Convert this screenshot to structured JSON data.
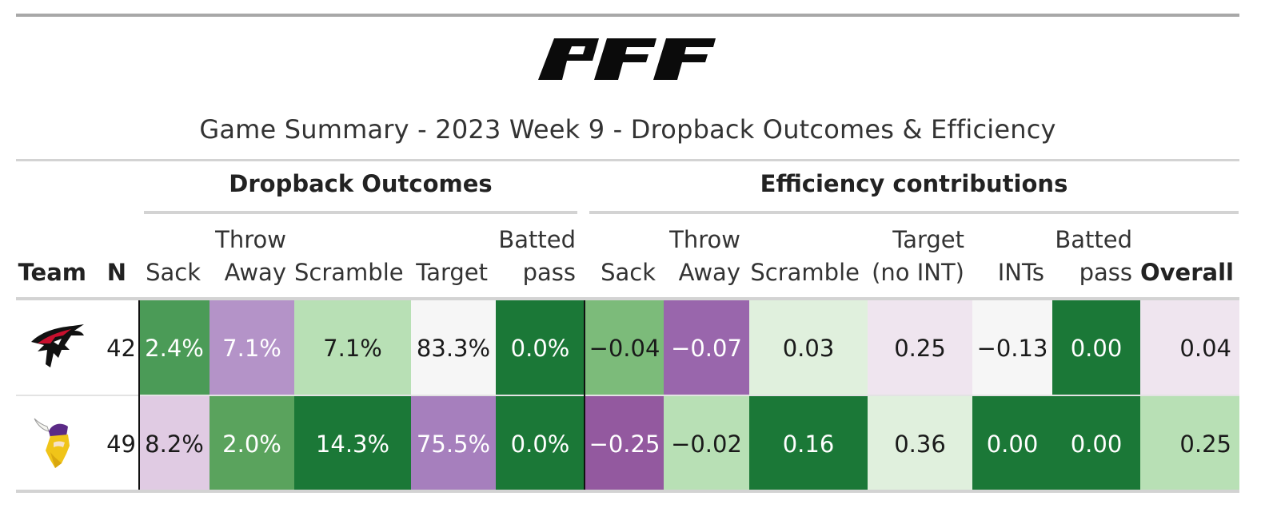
{
  "logo_text": "PFF",
  "title": "Game Summary - 2023 Week 9 - Dropback Outcomes & Efficiency",
  "spanners": {
    "dropback_outcomes": "Dropback Outcomes",
    "efficiency_contributions": "Efficiency contributions"
  },
  "columns": {
    "team": "Team",
    "n": "N",
    "outcomes": {
      "sack": [
        "",
        "Sack"
      ],
      "throw_away": [
        "Throw",
        "Away"
      ],
      "scramble": [
        "",
        "Scramble"
      ],
      "target": [
        "",
        "Target"
      ],
      "batted_pass": [
        "Batted",
        "pass"
      ]
    },
    "efficiency": {
      "sack": [
        "",
        "Sack"
      ],
      "throw_away": [
        "Throw",
        "Away"
      ],
      "scramble": [
        "",
        "Scramble"
      ],
      "target_no_int": [
        "Target",
        "(no INT)"
      ],
      "ints": [
        "",
        "INTs"
      ],
      "batted_pass": [
        "Batted",
        "pass"
      ],
      "overall": [
        "",
        "Overall"
      ]
    }
  },
  "rows": [
    {
      "team_icon": "falcons-logo-icon",
      "n": "42",
      "outcomes": {
        "sack": {
          "text": "2.4%",
          "bg": "#4b9b57",
          "fg": "#ffffff"
        },
        "throw_away": {
          "text": "7.1%",
          "bg": "#b493c8",
          "fg": "#ffffff"
        },
        "scramble": {
          "text": "7.1%",
          "bg": "#b8e0b5",
          "fg": "#1a1a1a"
        },
        "target": {
          "text": "83.3%",
          "bg": "#f6f6f6",
          "fg": "#1a1a1a"
        },
        "batted_pass": {
          "text": "0.0%",
          "bg": "#1b7837",
          "fg": "#ffffff"
        }
      },
      "efficiency": {
        "sack": {
          "text": "−0.04",
          "bg": "#7cbb7a",
          "fg": "#1a1a1a"
        },
        "throw_away": {
          "text": "−0.07",
          "bg": "#9966ac",
          "fg": "#ffffff"
        },
        "scramble": {
          "text": "0.03",
          "bg": "#e0f0dd",
          "fg": "#1a1a1a"
        },
        "target_no_int": {
          "text": "0.25",
          "bg": "#efe5ef",
          "fg": "#1a1a1a"
        },
        "ints": {
          "text": "−0.13",
          "bg": "#f6f6f6",
          "fg": "#1a1a1a"
        },
        "batted_pass": {
          "text": "0.00",
          "bg": "#1b7837",
          "fg": "#ffffff"
        },
        "overall": {
          "text": "0.04",
          "bg": "#efe5ef",
          "fg": "#1a1a1a"
        }
      }
    },
    {
      "team_icon": "vikings-logo-icon",
      "n": "49",
      "outcomes": {
        "sack": {
          "text": "8.2%",
          "bg": "#e0cbe3",
          "fg": "#1a1a1a"
        },
        "throw_away": {
          "text": "2.0%",
          "bg": "#5aa35d",
          "fg": "#ffffff"
        },
        "scramble": {
          "text": "14.3%",
          "bg": "#1b7837",
          "fg": "#ffffff"
        },
        "target": {
          "text": "75.5%",
          "bg": "#a67fbd",
          "fg": "#ffffff"
        },
        "batted_pass": {
          "text": "0.0%",
          "bg": "#1b7837",
          "fg": "#ffffff"
        }
      },
      "efficiency": {
        "sack": {
          "text": "−0.25",
          "bg": "#93599f",
          "fg": "#ffffff"
        },
        "throw_away": {
          "text": "−0.02",
          "bg": "#b8e0b5",
          "fg": "#1a1a1a"
        },
        "scramble": {
          "text": "0.16",
          "bg": "#1b7837",
          "fg": "#ffffff"
        },
        "target_no_int": {
          "text": "0.36",
          "bg": "#e0f0dd",
          "fg": "#1a1a1a"
        },
        "ints": {
          "text": "0.00",
          "bg": "#1b7837",
          "fg": "#ffffff"
        },
        "batted_pass": {
          "text": "0.00",
          "bg": "#1b7837",
          "fg": "#ffffff"
        },
        "overall": {
          "text": "0.25",
          "bg": "#b8e0b5",
          "fg": "#1a1a1a"
        }
      }
    }
  ]
}
